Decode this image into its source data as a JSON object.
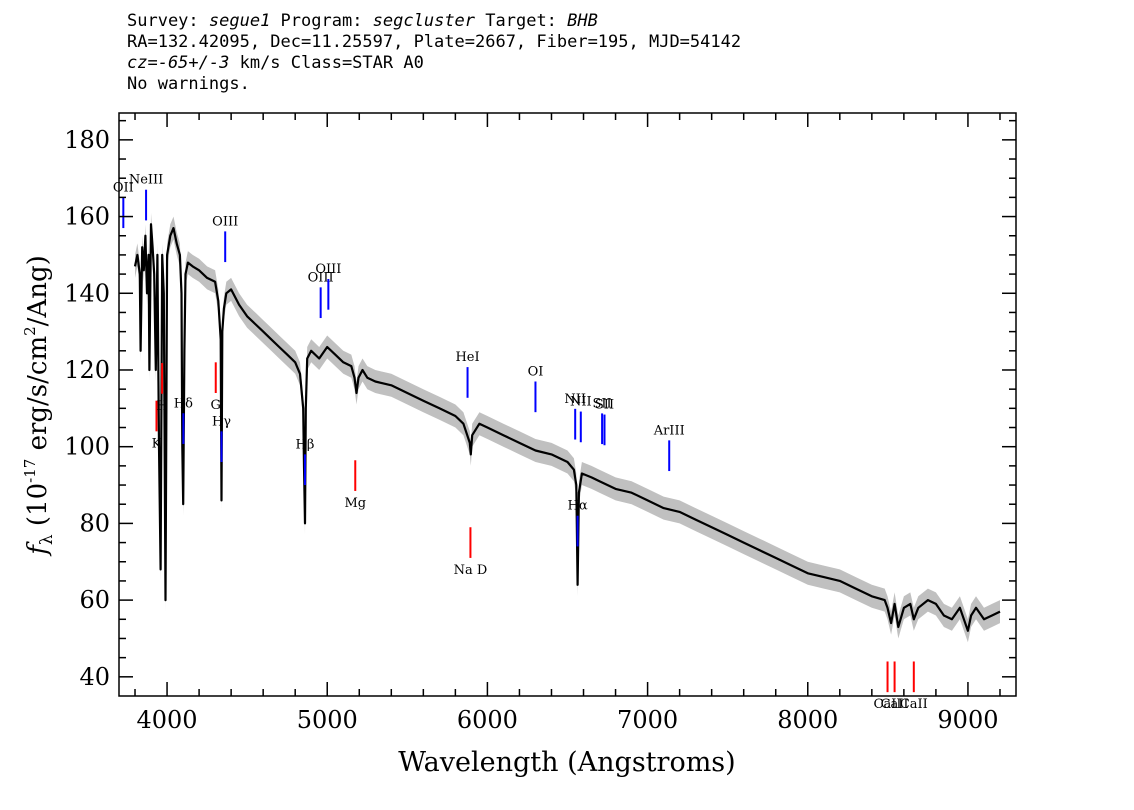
{
  "header": {
    "line1": {
      "p1": "Survey: ",
      "v1": "segue1",
      "p2": " Program: ",
      "v2": "segcluster",
      "p3": " Target: ",
      "v3": "BHB"
    },
    "line2": "RA=132.42095, Dec=11.25597, Plate=2667, Fiber=195, MJD=54142",
    "line3": {
      "v1": "cz=-65+/-3",
      "rest": " km/s Class=STAR A0"
    },
    "line4": "No warnings."
  },
  "colors": {
    "spectrum": "#000000",
    "error_band": "#c0c0c0",
    "emission": "#0000ff",
    "absorption": "#ff0000",
    "frame": "#000000"
  },
  "chart_data": {
    "type": "line",
    "title": "",
    "xlabel": "Wavelength (Angstroms)",
    "ylabel": "f_λ (10^-17 erg/s/cm^2/Ang)",
    "xlim": [
      3700,
      9300
    ],
    "ylim": [
      35,
      187
    ],
    "xticks": [
      4000,
      5000,
      6000,
      7000,
      8000,
      9000
    ],
    "yticks": [
      40,
      60,
      80,
      100,
      120,
      140,
      160,
      180
    ],
    "grid": false,
    "series": [
      {
        "style": "line",
        "x": [
          3800,
          3815,
          3830,
          3835,
          3845,
          3855,
          3865,
          3875,
          3885,
          3890,
          3900,
          3910,
          3920,
          3930,
          3940,
          3950,
          3960,
          3970,
          3980,
          3990,
          4000,
          4020,
          4040,
          4060,
          4080,
          4090,
          4095,
          4101,
          4108,
          4115,
          4130,
          4160,
          4200,
          4250,
          4300,
          4320,
          4335,
          4340,
          4345,
          4355,
          4370,
          4400,
          4450,
          4500,
          4550,
          4600,
          4650,
          4700,
          4750,
          4800,
          4830,
          4850,
          4855,
          4861,
          4866,
          4875,
          4900,
          4950,
          5000,
          5050,
          5100,
          5150,
          5170,
          5183,
          5195,
          5220,
          5250,
          5300,
          5400,
          5500,
          5600,
          5700,
          5800,
          5850,
          5890,
          5896,
          5905,
          5950,
          6000,
          6100,
          6200,
          6300,
          6400,
          6500,
          6540,
          6555,
          6563,
          6571,
          6590,
          6650,
          6700,
          6800,
          6900,
          7000,
          7100,
          7200,
          7300,
          7400,
          7500,
          7600,
          7700,
          7800,
          7900,
          8000,
          8100,
          8200,
          8300,
          8400,
          8480,
          8498,
          8520,
          8542,
          8565,
          8600,
          8640,
          8662,
          8690,
          8750,
          8800,
          8850,
          8900,
          8950,
          9000,
          9020,
          9050,
          9100,
          9150,
          9200
        ],
        "y": [
          147,
          150,
          145,
          125,
          152,
          146,
          155,
          140,
          150,
          120,
          158,
          152,
          145,
          120,
          150,
          100,
          68,
          150,
          140,
          60,
          150,
          155,
          157,
          153,
          150,
          140,
          100,
          85,
          125,
          145,
          148,
          147,
          146,
          144,
          143,
          138,
          128,
          86,
          130,
          136,
          140,
          141,
          137,
          134,
          132,
          130,
          128,
          126,
          124,
          122,
          119,
          110,
          95,
          80,
          110,
          123,
          125,
          123,
          126,
          124,
          122,
          121,
          118,
          114,
          118,
          120,
          118,
          117,
          116,
          114,
          112,
          110,
          108,
          106,
          101,
          98,
          103,
          106,
          105,
          103,
          101,
          99,
          98,
          96,
          94,
          90,
          64,
          88,
          93,
          92,
          91,
          89,
          88,
          86,
          84,
          83,
          81,
          79,
          77,
          75,
          73,
          71,
          69,
          67,
          66,
          65,
          63,
          61,
          60,
          58,
          54,
          59,
          53,
          58,
          59,
          55,
          58,
          60,
          59,
          56,
          55,
          58,
          52,
          56,
          58,
          55,
          56,
          57
        ]
      }
    ],
    "error_band_halfwidth": 3,
    "line_markers": {
      "emission": [
        {
          "label": "OII",
          "wavelength": 3727
        },
        {
          "label": "NeIII",
          "wavelength": 3869
        },
        {
          "label": "Hδ",
          "wavelength": 4102
        },
        {
          "label": "Hγ",
          "wavelength": 4340
        },
        {
          "label": "OIII",
          "wavelength": 4363
        },
        {
          "label": "Hβ",
          "wavelength": 4861
        },
        {
          "label": "OIII",
          "wavelength": 4959
        },
        {
          "label": "OIII",
          "wavelength": 5007
        },
        {
          "label": "HeI",
          "wavelength": 5876
        },
        {
          "label": "OI",
          "wavelength": 6300
        },
        {
          "label": "NII",
          "wavelength": 6548
        },
        {
          "label": "Hα",
          "wavelength": 6563
        },
        {
          "label": "NII",
          "wavelength": 6583
        },
        {
          "label": "SII",
          "wavelength": 6716
        },
        {
          "label": "SII",
          "wavelength": 6731
        },
        {
          "label": "ArIII",
          "wavelength": 7135
        }
      ],
      "absorption": [
        {
          "label": "K",
          "wavelength": 3934
        },
        {
          "label": "H",
          "wavelength": 3969
        },
        {
          "label": "G",
          "wavelength": 4304
        },
        {
          "label": "Mg",
          "wavelength": 5175
        },
        {
          "label": "Na D",
          "wavelength": 5894
        },
        {
          "label": "CaII",
          "wavelength": 8498
        },
        {
          "label": "CaII",
          "wavelength": 8542
        },
        {
          "label": "CaII",
          "wavelength": 8662
        }
      ]
    }
  }
}
